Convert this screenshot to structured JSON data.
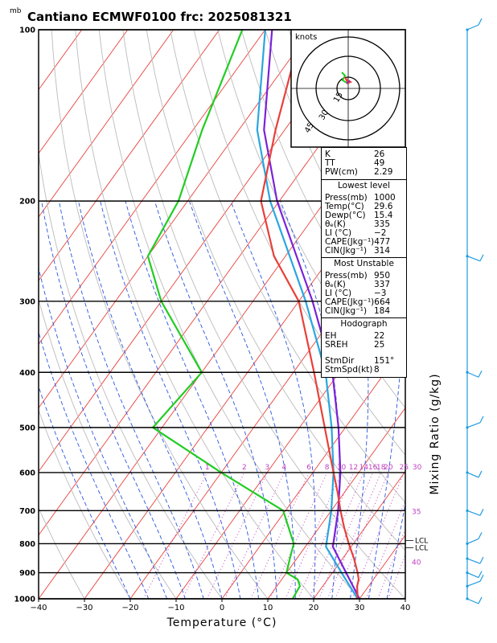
{
  "title": "Cantiano ECMWF0100  frc: 2025081321",
  "unit_mb": "mb",
  "chart_data": {
    "type": "skew-t",
    "xlabel": "Temperature (°C)",
    "ylabel": "Mixing Ratio (g/kg)",
    "x_ticks": [
      -40,
      -30,
      -20,
      -10,
      0,
      10,
      20,
      30,
      40
    ],
    "pressure_ticks": [
      100,
      200,
      300,
      400,
      500,
      600,
      700,
      800,
      900,
      1000
    ],
    "mixing_ratio_labels": [
      "1",
      "2",
      "3",
      "4",
      "6",
      "8",
      "10",
      "12",
      "14",
      "16",
      "18",
      "20",
      "25",
      "30",
      "35",
      "40"
    ],
    "lcl_labels": [
      "LCL",
      "LCL"
    ],
    "temperature_profile": [
      {
        "p": 1000,
        "t": 29.6
      },
      {
        "p": 950,
        "t": 27.5
      },
      {
        "p": 925,
        "t": 26.8
      },
      {
        "p": 900,
        "t": 25.5
      },
      {
        "p": 850,
        "t": 22.5
      },
      {
        "p": 800,
        "t": 19.0
      },
      {
        "p": 750,
        "t": 15.5
      },
      {
        "p": 700,
        "t": 12.0
      },
      {
        "p": 650,
        "t": 8.5
      },
      {
        "p": 600,
        "t": 4.5
      },
      {
        "p": 500,
        "t": -4.5
      },
      {
        "p": 400,
        "t": -15.5
      },
      {
        "p": 300,
        "t": -30.0
      },
      {
        "p": 250,
        "t": -42.5
      },
      {
        "p": 200,
        "t": -54.0
      },
      {
        "p": 150,
        "t": -62.0
      },
      {
        "p": 100,
        "t": -72.0
      }
    ],
    "dewpoint_profile": [
      {
        "p": 1000,
        "t": 15.4
      },
      {
        "p": 950,
        "t": 15.0
      },
      {
        "p": 925,
        "t": 13.5
      },
      {
        "p": 900,
        "t": 10.0
      },
      {
        "p": 850,
        "t": 8.5
      },
      {
        "p": 800,
        "t": 7.0
      },
      {
        "p": 700,
        "t": -0.5
      },
      {
        "p": 600,
        "t": -20.0
      },
      {
        "p": 500,
        "t": -42.0
      },
      {
        "p": 400,
        "t": -40.0
      },
      {
        "p": 300,
        "t": -60.0
      },
      {
        "p": 250,
        "t": -70.0
      },
      {
        "p": 200,
        "t": -72.0
      },
      {
        "p": 150,
        "t": -78.0
      },
      {
        "p": 100,
        "t": -85.0
      }
    ],
    "parcel_profile": [
      {
        "p": 1000,
        "t": 29.6
      },
      {
        "p": 900,
        "t": 22.0
      },
      {
        "p": 810,
        "t": 14.5
      },
      {
        "p": 700,
        "t": 10.0
      },
      {
        "p": 600,
        "t": 4.5
      },
      {
        "p": 500,
        "t": -3.0
      },
      {
        "p": 400,
        "t": -13.0
      },
      {
        "p": 300,
        "t": -28.5
      },
      {
        "p": 200,
        "t": -52.0
      },
      {
        "p": 150,
        "t": -66.0
      },
      {
        "p": 100,
        "t": -80.0
      }
    ],
    "virtual_parcel_profile": [
      {
        "p": 1000,
        "t": 30.0
      },
      {
        "p": 900,
        "t": 23.0
      },
      {
        "p": 810,
        "t": 16.0
      },
      {
        "p": 700,
        "t": 11.5
      },
      {
        "p": 600,
        "t": 6.0
      },
      {
        "p": 500,
        "t": -1.5
      },
      {
        "p": 400,
        "t": -11.5
      },
      {
        "p": 300,
        "t": -27.0
      },
      {
        "p": 200,
        "t": -50.5
      },
      {
        "p": 150,
        "t": -64.5
      },
      {
        "p": 100,
        "t": -78.5
      }
    ],
    "hodograph": {
      "unit": "knots",
      "rings": [
        "15",
        "30",
        "45"
      ]
    }
  },
  "indices": {
    "general": [
      {
        "label": "K",
        "value": "26"
      },
      {
        "label": "TT",
        "value": "49"
      },
      {
        "label": "PW(cm)",
        "value": "2.29"
      }
    ],
    "lowest_title": "Lowest level",
    "lowest": [
      {
        "label": "Press(mb)",
        "value": "1000"
      },
      {
        "label": "Temp(°C)",
        "value": "29.6"
      },
      {
        "label": "Dewp(°C)",
        "value": "15.4"
      },
      {
        "label": "θₑ(K)",
        "value": "335"
      },
      {
        "label": "LI (°C)",
        "value": "−2"
      },
      {
        "label": "CAPE(Jkg⁻¹)",
        "value": "477"
      },
      {
        "label": "CIN(Jkg⁻¹)",
        "value": "314"
      }
    ],
    "unstable_title": "Most Unstable",
    "unstable": [
      {
        "label": "Press(mb)",
        "value": "950"
      },
      {
        "label": "θₑ(K)",
        "value": "337"
      },
      {
        "label": "LI (°C)",
        "value": "−3"
      },
      {
        "label": "CAPE(Jkg⁻¹)",
        "value": "664"
      },
      {
        "label": "CIN(Jkg⁻¹)",
        "value": "184"
      }
    ],
    "hodo_title": "Hodograph",
    "hodo": [
      {
        "label": "EH",
        "value": "22"
      },
      {
        "label": "SREH",
        "value": "25"
      }
    ],
    "storm": [
      {
        "label": "StmDir",
        "value": "151°"
      },
      {
        "label": "StmSpd(kt)",
        "value": "8"
      }
    ]
  },
  "colors": {
    "temperature": "#e8403a",
    "dewpoint": "#22cc22",
    "parcel": "#2aa6e0",
    "virtual_parcel": "#7a22d8",
    "isotherm": "#e8403a",
    "dry_adiabat": "#bbbbbb",
    "moist_adiabat": "#2a55dd",
    "mixing_ratio": "#c040c0",
    "wind": "#1e9be0"
  }
}
